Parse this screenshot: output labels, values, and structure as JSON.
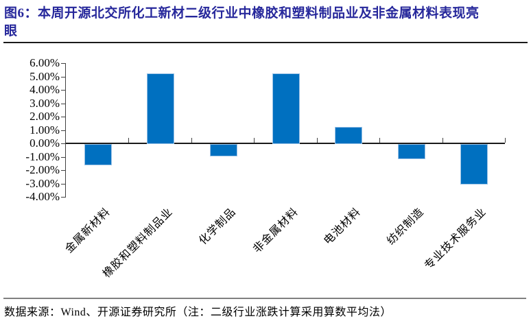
{
  "title": "图6：本周开源北交所化工新材二级行业中橡胶和塑料制品业及非金属材料表现亮眼",
  "chart_data": {
    "type": "bar",
    "title": "",
    "xlabel": "",
    "ylabel": "",
    "unit": "%",
    "categories": [
      "金属新材料",
      "橡胶和塑料制品业",
      "化学制品",
      "非金属材料",
      "电池材料",
      "纺织制造",
      "专业技术服务业"
    ],
    "values": [
      -1.5,
      5.2,
      -0.8,
      5.2,
      1.2,
      -1.0,
      -2.9
    ],
    "ylim": [
      -4,
      6
    ],
    "ytick_step": 1,
    "ytick_labels": [
      "6.00%",
      "5.00%",
      "4.00%",
      "3.00%",
      "2.00%",
      "1.00%",
      "0.00%",
      "-1.00%",
      "-2.00%",
      "-3.00%",
      "-4.00%"
    ],
    "grid": false,
    "legend": null,
    "bar_color": "#0070C0",
    "bar_border_color": "#9DC3E6"
  },
  "footer": {
    "source": "数据来源：Wind、开源证券研究所（注：二级行业涨跌计算采用算数平均法）"
  },
  "colors": {
    "title_text": "#26279B",
    "axis": "#404040",
    "zero_line": "#1a1a1a",
    "footer_rule": "#808080"
  }
}
